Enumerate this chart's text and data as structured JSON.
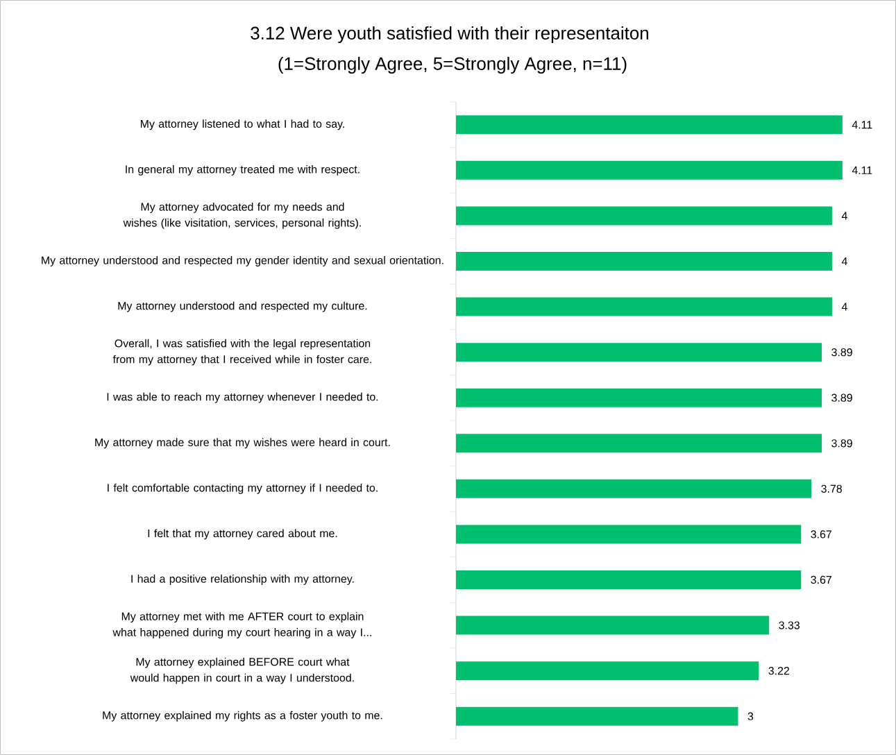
{
  "chart_data": {
    "type": "bar",
    "orientation": "horizontal",
    "title": "3.12 Were youth satisfied with their representaiton",
    "subtitle": "(1=Strongly Agree, 5=Strongly Agree, n=11)",
    "categories": [
      "My attorney listened to what I had to say.",
      "In general my attorney treated me with respect.",
      "My attorney advocated for my needs and wishes (like visitation, services, personal rights).",
      "My attorney understood and respected my gender identity and sexual orientation.",
      "My attorney understood and respected my culture.",
      "Overall, I was satisfied with the legal representation from my attorney that I received while in foster care.",
      "I was able to reach my attorney whenever I needed to.",
      "My attorney made sure that my wishes were heard in court.",
      "I felt comfortable contacting my attorney if I needed to.",
      "I felt that my attorney cared about me.",
      "I had a positive relationship with my attorney.",
      "My attorney met with me AFTER court to explain what happened during my court hearing in a way I...",
      "My attorney explained BEFORE court what would happen in court in a way I understood.",
      "My attorney explained my rights as a foster youth to me."
    ],
    "values": [
      4.11,
      4.11,
      4,
      4,
      4,
      3.89,
      3.89,
      3.89,
      3.78,
      3.67,
      3.67,
      3.33,
      3.22,
      3
    ],
    "color": "#00bf6f",
    "data_labels": true
  }
}
